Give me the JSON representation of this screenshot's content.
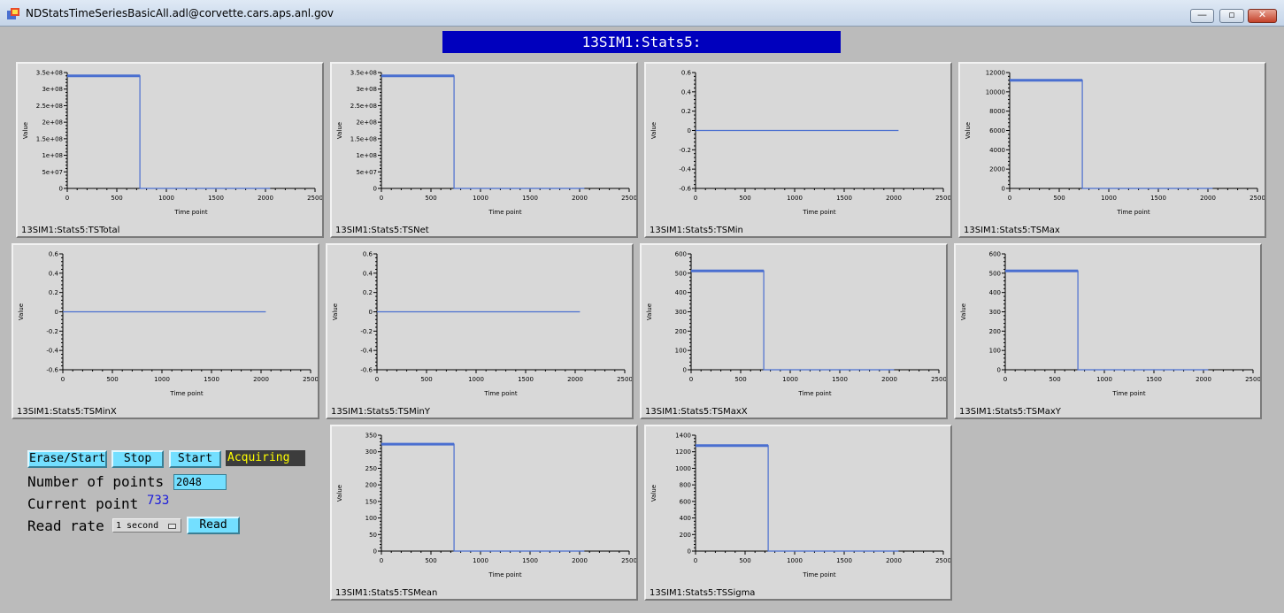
{
  "window": {
    "title": "NDStatsTimeSeriesBasicAll.adl@corvette.cars.aps.anl.gov",
    "minimize": "—",
    "maximize": "▫",
    "close": "✕"
  },
  "header": {
    "title": "13SIM1:Stats5:"
  },
  "colors": {
    "accent": "#0000be",
    "button": "#73dfff",
    "trace": "#4a6fd0",
    "status_text": "#ffff00",
    "current_point": "#1a1adb"
  },
  "controls": {
    "erase_start": "Erase/Start",
    "stop": "Stop",
    "start": "Start",
    "status": "Acquiring",
    "number_of_points_label": "Number of points",
    "number_of_points_value": "2048",
    "current_point_label": "Current point",
    "current_point_value": "733",
    "read_rate_label": "Read rate",
    "read_rate_value": "1 second",
    "read": "Read"
  },
  "chart_data": [
    {
      "type": "line",
      "name": "13SIM1:Stats5:TSTotal",
      "xlabel": "Time point",
      "ylabel": "Value",
      "xlim": [
        0,
        2500
      ],
      "xticks": [
        "0",
        "500",
        "1000",
        "1500",
        "2000",
        "2500"
      ],
      "ylim": [
        0,
        350000000
      ],
      "yticks": [
        "0",
        "5e+07",
        "1e+08",
        "1.5e+08",
        "2e+08",
        "2.5e+08",
        "3e+08",
        "3.5e+08"
      ],
      "x": [
        0,
        733,
        733,
        2048
      ],
      "y": [
        340000000,
        340000000,
        0,
        0
      ]
    },
    {
      "type": "line",
      "name": "13SIM1:Stats5:TSNet",
      "xlabel": "Time point",
      "ylabel": "Value",
      "xlim": [
        0,
        2500
      ],
      "xticks": [
        "0",
        "500",
        "1000",
        "1500",
        "2000",
        "2500"
      ],
      "ylim": [
        0,
        350000000
      ],
      "yticks": [
        "0",
        "5e+07",
        "1e+08",
        "1.5e+08",
        "2e+08",
        "2.5e+08",
        "3e+08",
        "3.5e+08"
      ],
      "x": [
        0,
        733,
        733,
        2048
      ],
      "y": [
        340000000,
        340000000,
        0,
        0
      ]
    },
    {
      "type": "line",
      "name": "13SIM1:Stats5:TSMin",
      "xlabel": "Time point",
      "ylabel": "Value",
      "xlim": [
        0,
        2500
      ],
      "xticks": [
        "0",
        "500",
        "1000",
        "1500",
        "2000",
        "2500"
      ],
      "ylim": [
        -0.6,
        0.6
      ],
      "yticks": [
        "-0.6",
        "-0.4",
        "-0.2",
        "0",
        "0.2",
        "0.4",
        "0.6"
      ],
      "x": [
        0,
        2048
      ],
      "y": [
        0,
        0
      ]
    },
    {
      "type": "line",
      "name": "13SIM1:Stats5:TSMax",
      "xlabel": "Time point",
      "ylabel": "Value",
      "xlim": [
        0,
        2500
      ],
      "xticks": [
        "0",
        "500",
        "1000",
        "1500",
        "2000",
        "2500"
      ],
      "ylim": [
        0,
        12000
      ],
      "yticks": [
        "0",
        "2000",
        "4000",
        "6000",
        "8000",
        "10000",
        "12000"
      ],
      "x": [
        0,
        733,
        733,
        2048
      ],
      "y": [
        11200,
        11200,
        0,
        0
      ]
    },
    {
      "type": "line",
      "name": "13SIM1:Stats5:TSMinX",
      "xlabel": "Time point",
      "ylabel": "Value",
      "xlim": [
        0,
        2500
      ],
      "xticks": [
        "0",
        "500",
        "1000",
        "1500",
        "2000",
        "2500"
      ],
      "ylim": [
        -0.6,
        0.6
      ],
      "yticks": [
        "-0.6",
        "-0.4",
        "-0.2",
        "0",
        "0.2",
        "0.4",
        "0.6"
      ],
      "x": [
        0,
        2048
      ],
      "y": [
        0,
        0
      ]
    },
    {
      "type": "line",
      "name": "13SIM1:Stats5:TSMinY",
      "xlabel": "Time point",
      "ylabel": "Value",
      "xlim": [
        0,
        2500
      ],
      "xticks": [
        "0",
        "500",
        "1000",
        "1500",
        "2000",
        "2500"
      ],
      "ylim": [
        -0.6,
        0.6
      ],
      "yticks": [
        "-0.6",
        "-0.4",
        "-0.2",
        "0",
        "0.2",
        "0.4",
        "0.6"
      ],
      "x": [
        0,
        2048
      ],
      "y": [
        0,
        0
      ]
    },
    {
      "type": "line",
      "name": "13SIM1:Stats5:TSMaxX",
      "xlabel": "Time point",
      "ylabel": "Value",
      "xlim": [
        0,
        2500
      ],
      "xticks": [
        "0",
        "500",
        "1000",
        "1500",
        "2000",
        "2500"
      ],
      "ylim": [
        0,
        600
      ],
      "yticks": [
        "0",
        "100",
        "200",
        "300",
        "400",
        "500",
        "600"
      ],
      "x": [
        0,
        733,
        733,
        2048
      ],
      "y": [
        512,
        512,
        0,
        0
      ]
    },
    {
      "type": "line",
      "name": "13SIM1:Stats5:TSMaxY",
      "xlabel": "Time point",
      "ylabel": "Value",
      "xlim": [
        0,
        2500
      ],
      "xticks": [
        "0",
        "500",
        "1000",
        "1500",
        "2000",
        "2500"
      ],
      "ylim": [
        0,
        600
      ],
      "yticks": [
        "0",
        "100",
        "200",
        "300",
        "400",
        "500",
        "600"
      ],
      "x": [
        0,
        733,
        733,
        2048
      ],
      "y": [
        512,
        512,
        0,
        0
      ]
    },
    {
      "type": "line",
      "name": "13SIM1:Stats5:TSMean",
      "xlabel": "Time point",
      "ylabel": "Value",
      "xlim": [
        0,
        2500
      ],
      "xticks": [
        "0",
        "500",
        "1000",
        "1500",
        "2000",
        "2500"
      ],
      "ylim": [
        0,
        350
      ],
      "yticks": [
        "0",
        "50",
        "100",
        "150",
        "200",
        "250",
        "300",
        "350"
      ],
      "x": [
        0,
        733,
        733,
        2048
      ],
      "y": [
        323,
        323,
        0,
        0
      ]
    },
    {
      "type": "line",
      "name": "13SIM1:Stats5:TSSigma",
      "xlabel": "Time point",
      "ylabel": "Value",
      "xlim": [
        0,
        2500
      ],
      "xticks": [
        "0",
        "500",
        "1000",
        "1500",
        "2000",
        "2500"
      ],
      "ylim": [
        0,
        1400
      ],
      "yticks": [
        "0",
        "200",
        "400",
        "600",
        "800",
        "1000",
        "1200",
        "1400"
      ],
      "x": [
        0,
        733,
        733,
        2048
      ],
      "y": [
        1275,
        1275,
        0,
        0
      ]
    }
  ]
}
